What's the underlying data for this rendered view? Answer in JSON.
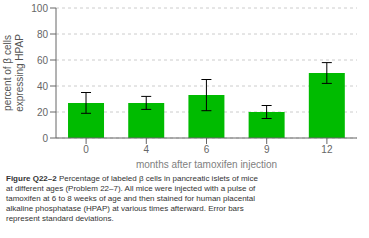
{
  "chart_data": {
    "type": "bar",
    "title": "Figure Q22–2",
    "subtitle": "Percentage of labeled β cells in pancreatic islets of mice\nat different ages (Problem 22–7). All mice were injected with a pulse of\ntamoxifen at 6 to 8 weeks of age and then stained for human placental\nalkaline phosphatase (HPAP) at various times afterward. Error bars\nrepresent standard deviations.",
    "xlabel": "months after tamoxifen injection",
    "ylabel": "percent of β cells\nexpressing HPAP",
    "categories": [
      "0",
      "4",
      "6",
      "9",
      "12"
    ],
    "values": [
      27,
      27,
      33,
      20,
      50
    ],
    "errors": [
      8,
      5,
      12,
      5,
      8
    ],
    "color": "#00BB00",
    "ylim": [
      0,
      100
    ],
    "yticks": [
      0,
      20,
      40,
      60,
      80,
      100
    ],
    "grid": true
  }
}
